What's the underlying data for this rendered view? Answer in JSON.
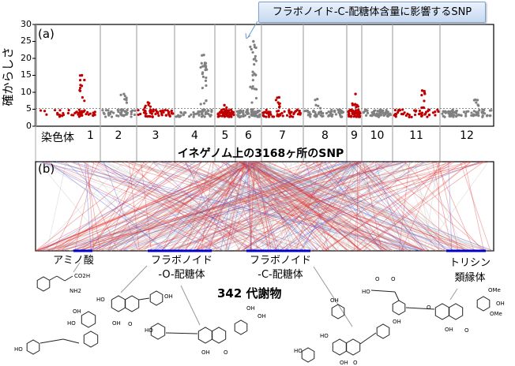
{
  "callout": {
    "text": "フラボノイド-C-配糖体含量に影響するSNP"
  },
  "panel_a": {
    "label": "(a)"
  },
  "panel_b": {
    "label": "(b)"
  },
  "chart_data": {
    "type": "scatter",
    "title": "",
    "xlabel": "イネゲノム上の3168ヶ所のSNP",
    "ylabel": "確からしさ",
    "ylim": [
      0,
      30
    ],
    "yticks": [
      "0",
      "5",
      "10",
      "15",
      "20",
      "25",
      "30"
    ],
    "threshold": 5.2,
    "grid": false,
    "chromosome_prefix": "染色体",
    "chromosomes": [
      "1",
      "2",
      "3",
      "4",
      "5",
      "6",
      "7",
      "8",
      "9",
      "10",
      "11",
      "12"
    ],
    "chromosome_colors": [
      "#c00000",
      "#808080",
      "#c00000",
      "#808080",
      "#c00000",
      "#808080",
      "#c00000",
      "#808080",
      "#c00000",
      "#808080",
      "#c00000",
      "#808080"
    ],
    "approx_peak_values": [
      15,
      9.5,
      7,
      21,
      6.2,
      25,
      8.5,
      8,
      9.5,
      3.5,
      10.5,
      7.8
    ]
  },
  "metabolites": {
    "total": "342 代謝物",
    "classes": [
      {
        "line1": "アミノ酸",
        "line2": ""
      },
      {
        "line1": "フラボノイド",
        "line2": "-O-配糖体"
      },
      {
        "line1": "フラボノイド",
        "line2": "-C-配糖体"
      },
      {
        "line1": "トリシン",
        "line2": "類縁体"
      }
    ]
  },
  "structure_labels": {
    "co2h": "CO2H",
    "nh2": "NH2",
    "oh": "OH",
    "ho": "HO",
    "ome": "OMe",
    "o": "O"
  },
  "colors": {
    "positive": "#e03030",
    "negative": "#4050e0",
    "neutral": "#b0b0b0",
    "class_bar": "#0000cc"
  }
}
